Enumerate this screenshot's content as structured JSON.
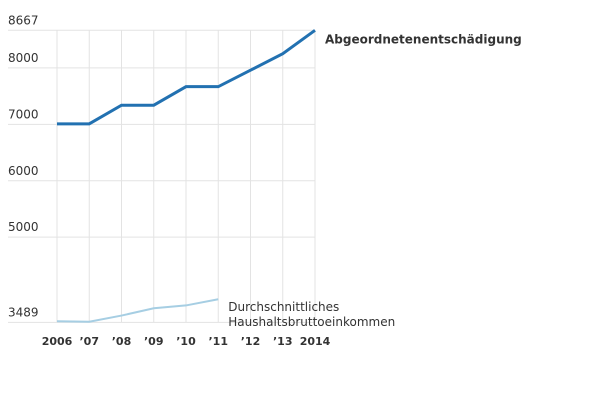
{
  "chart_data": {
    "type": "line",
    "categories": [
      "2006",
      "’07",
      "’08",
      "’09",
      "’10",
      "’11",
      "’12",
      "’13",
      "2014"
    ],
    "series": [
      {
        "name": "Abgeordnetenentschädigung",
        "color": "#2271b1",
        "values": [
          7009,
          7009,
          7339,
          7339,
          7668,
          7668,
          7960,
          8252,
          8667
        ]
      },
      {
        "name": "Durchschnittliches Haushaltsbruttoeinkommen",
        "color": "#a6cee3",
        "values": [
          3510,
          3500,
          3610,
          3740,
          3790,
          3900,
          null,
          null,
          null
        ]
      }
    ],
    "ylim": [
      3489,
      8667
    ],
    "yticks": [
      3489,
      5000,
      6000,
      7000,
      8000,
      8667
    ],
    "grid": true
  }
}
